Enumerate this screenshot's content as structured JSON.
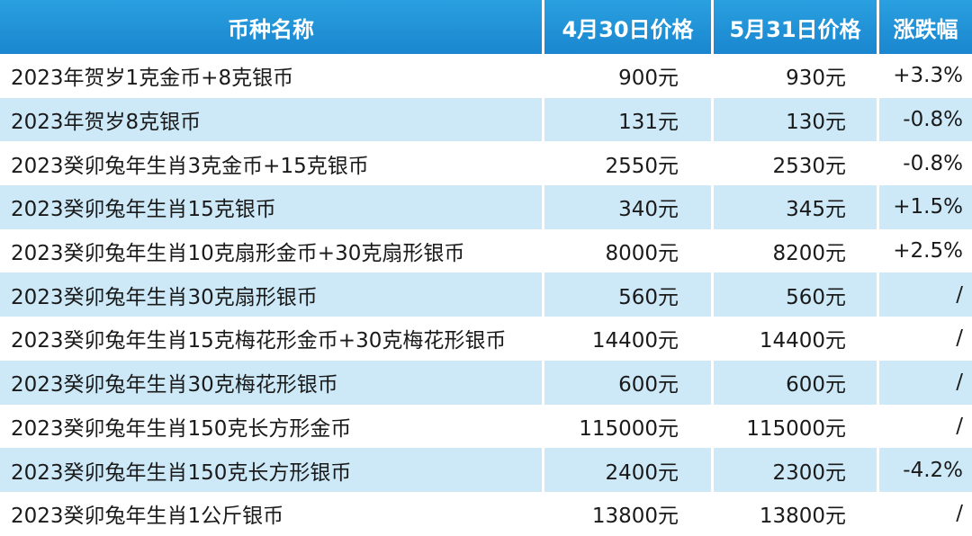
{
  "header": {
    "name": "币种名称",
    "apr_price": "4月30日价格",
    "may_price": "5月31日价格",
    "change": "涨跌幅"
  },
  "rows": [
    {
      "name": "2023年贺岁1克金币+8克银币",
      "apr": "900元",
      "may": "930元",
      "change": "+3.3%"
    },
    {
      "name": "2023年贺岁8克银币",
      "apr": "131元",
      "may": "130元",
      "change": "-0.8%"
    },
    {
      "name": "2023癸卯兔年生肖3克金币+15克银币",
      "apr": "2550元",
      "may": "2530元",
      "change": "-0.8%"
    },
    {
      "name": "2023癸卯兔年生肖15克银币",
      "apr": "340元",
      "may": "345元",
      "change": "+1.5%"
    },
    {
      "name": "2023癸卯兔年生肖10克扇形金币+30克扇形银币",
      "apr": "8000元",
      "may": "8200元",
      "change": "+2.5%"
    },
    {
      "name": "2023癸卯兔年生肖30克扇形银币",
      "apr": "560元",
      "may": "560元",
      "change": "/"
    },
    {
      "name": "2023癸卯兔年生肖15克梅花形金币+30克梅花形银币",
      "apr": "14400元",
      "may": "14400元",
      "change": "/"
    },
    {
      "name": "2023癸卯兔年生肖30克梅花形银币",
      "apr": "600元",
      "may": "600元",
      "change": "/"
    },
    {
      "name": "2023癸卯兔年生肖150克长方形金币",
      "apr": "115000元",
      "may": "115000元",
      "change": "/"
    },
    {
      "name": "2023癸卯兔年生肖150克长方形银币",
      "apr": "2400元",
      "may": "2300元",
      "change": "-4.2%"
    },
    {
      "name": "2023癸卯兔年生肖1公斤银币",
      "apr": "13800元",
      "may": "13800元",
      "change": "/"
    }
  ]
}
